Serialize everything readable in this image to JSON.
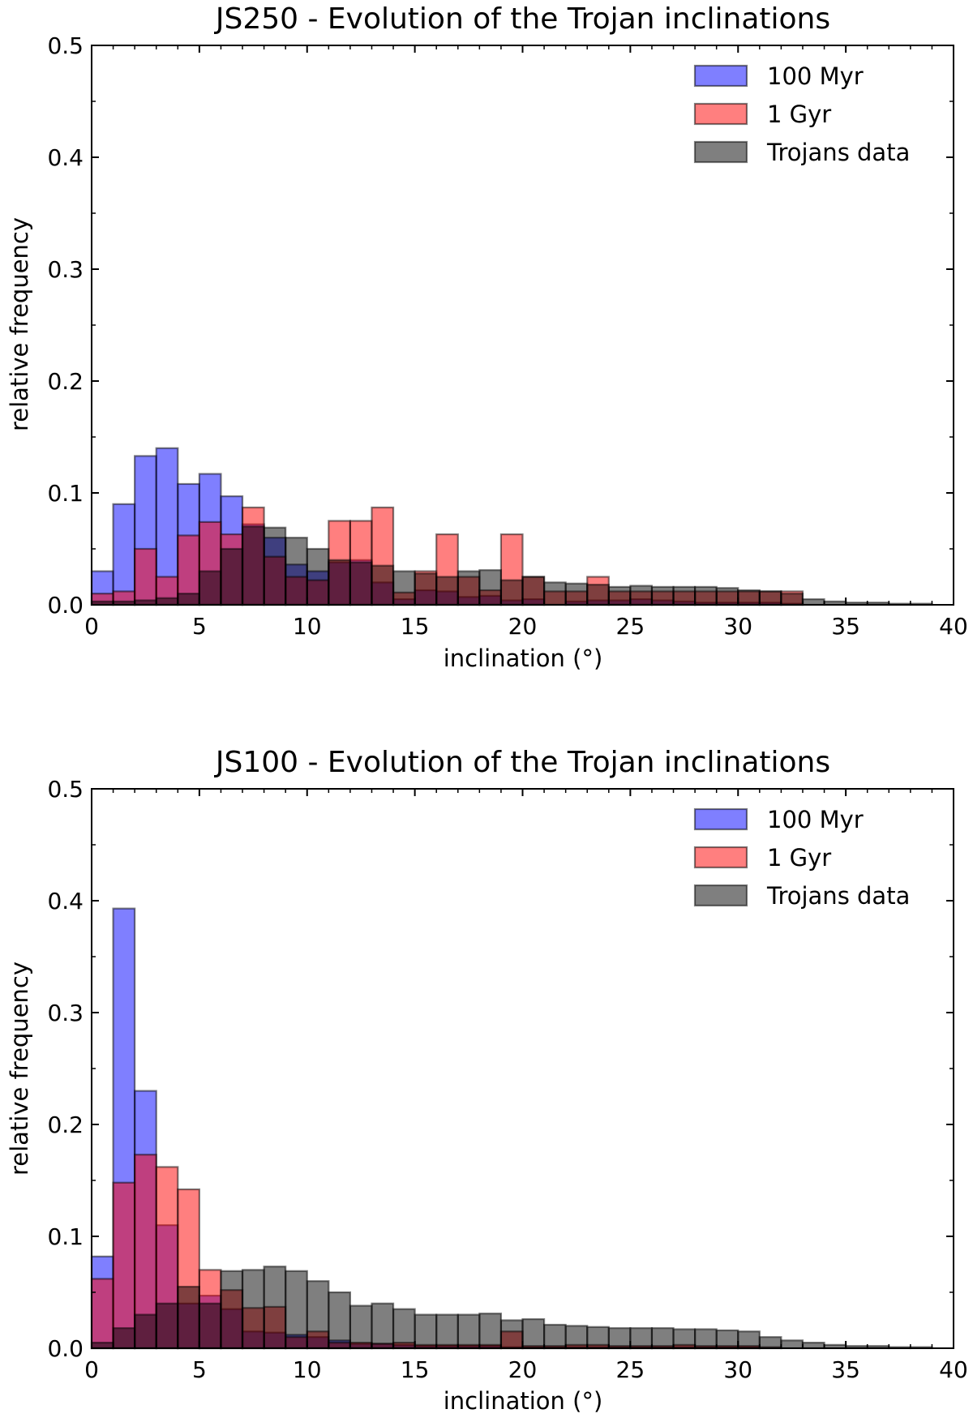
{
  "colors": {
    "blue": "#0000ff",
    "red": "#ff0000",
    "gray": "#000000",
    "edge": "#000000"
  },
  "chart_data": [
    {
      "type": "histogram",
      "title": "JS250 - Evolution of the Trojan inclinations",
      "xlabel": "inclination (°)",
      "ylabel": "relative frequency",
      "xlim": [
        0,
        40
      ],
      "ylim": [
        0,
        0.5
      ],
      "xticks": [
        "0",
        "5",
        "10",
        "15",
        "20",
        "25",
        "30",
        "35",
        "40"
      ],
      "yticks": [
        "0.0",
        "0.1",
        "0.2",
        "0.3",
        "0.4",
        "0.5"
      ],
      "bin_width": 1,
      "legend": [
        "100 Myr",
        "1 Gyr",
        "Trojans data"
      ],
      "series": [
        {
          "name": "100 Myr",
          "color": "blue",
          "values": [
            0.03,
            0.09,
            0.133,
            0.14,
            0.108,
            0.117,
            0.097,
            0.072,
            0.06,
            0.036,
            0.03,
            0.038,
            0.04,
            0.02,
            0.005,
            0.013,
            0.012,
            0.007,
            0.008,
            0.004,
            0.005,
            0.0,
            0.003,
            0.004,
            0.004,
            0.005,
            0.004,
            0.003,
            0.002,
            0.002,
            0.002,
            0.002,
            0.001,
            0,
            0,
            0,
            0,
            0,
            0,
            0
          ]
        },
        {
          "name": "1 Gyr",
          "color": "red",
          "values": [
            0.01,
            0.012,
            0.05,
            0.025,
            0.062,
            0.074,
            0.063,
            0.087,
            0.043,
            0.025,
            0.022,
            0.075,
            0.075,
            0.087,
            0.011,
            0.03,
            0.063,
            0.025,
            0.013,
            0.063,
            0.025,
            0.012,
            0.012,
            0.025,
            0.012,
            0.012,
            0.012,
            0.012,
            0.012,
            0.012,
            0.012,
            0.012,
            0.012,
            0,
            0,
            0,
            0,
            0,
            0,
            0
          ]
        },
        {
          "name": "Trojans data",
          "color": "gray",
          "values": [
            0.003,
            0.003,
            0.004,
            0.006,
            0.01,
            0.03,
            0.05,
            0.07,
            0.069,
            0.06,
            0.05,
            0.04,
            0.038,
            0.035,
            0.03,
            0.028,
            0.025,
            0.03,
            0.031,
            0.022,
            0.025,
            0.02,
            0.019,
            0.018,
            0.016,
            0.017,
            0.016,
            0.016,
            0.016,
            0.015,
            0.013,
            0.012,
            0.01,
            0.005,
            0.003,
            0.002,
            0.002,
            0.001,
            0.001,
            0.0
          ]
        }
      ]
    },
    {
      "type": "histogram",
      "title": "JS100 - Evolution of the Trojan inclinations",
      "xlabel": "inclination (°)",
      "ylabel": "relative frequency",
      "xlim": [
        0,
        40
      ],
      "ylim": [
        0,
        0.5
      ],
      "xticks": [
        "0",
        "5",
        "10",
        "15",
        "20",
        "25",
        "30",
        "35",
        "40"
      ],
      "yticks": [
        "0.0",
        "0.1",
        "0.2",
        "0.3",
        "0.4",
        "0.5"
      ],
      "bin_width": 1,
      "legend": [
        "100 Myr",
        "1 Gyr",
        "Trojans data"
      ],
      "series": [
        {
          "name": "100 Myr",
          "color": "blue",
          "values": [
            0.082,
            0.393,
            0.23,
            0.11,
            0.04,
            0.047,
            0.035,
            0.015,
            0.014,
            0.012,
            0.01,
            0.007,
            0.004,
            0.004,
            0.003,
            0.002,
            0.002,
            0.002,
            0.002,
            0.001,
            0.001,
            0.001,
            0.001,
            0.001,
            0.001,
            0.001,
            0.001,
            0.001,
            0.001,
            0.001,
            0.001,
            0,
            0,
            0,
            0,
            0,
            0,
            0,
            0,
            0
          ]
        },
        {
          "name": "1 Gyr",
          "color": "red",
          "values": [
            0.062,
            0.148,
            0.173,
            0.162,
            0.142,
            0.07,
            0.052,
            0.036,
            0.037,
            0.01,
            0.015,
            0.005,
            0.005,
            0.004,
            0.005,
            0.003,
            0.003,
            0.003,
            0.003,
            0.015,
            0.002,
            0.002,
            0.003,
            0.003,
            0.002,
            0.002,
            0.002,
            0.003,
            0.002,
            0.002,
            0.002,
            0.001,
            0,
            0,
            0,
            0,
            0,
            0,
            0,
            0
          ]
        },
        {
          "name": "Trojans data",
          "color": "gray",
          "values": [
            0.005,
            0.018,
            0.03,
            0.04,
            0.055,
            0.04,
            0.069,
            0.07,
            0.073,
            0.069,
            0.06,
            0.05,
            0.038,
            0.04,
            0.035,
            0.03,
            0.03,
            0.03,
            0.031,
            0.025,
            0.026,
            0.021,
            0.02,
            0.019,
            0.018,
            0.018,
            0.018,
            0.017,
            0.017,
            0.016,
            0.015,
            0.01,
            0.007,
            0.005,
            0.003,
            0.002,
            0.002,
            0.001,
            0.001,
            0.0
          ]
        }
      ]
    }
  ]
}
